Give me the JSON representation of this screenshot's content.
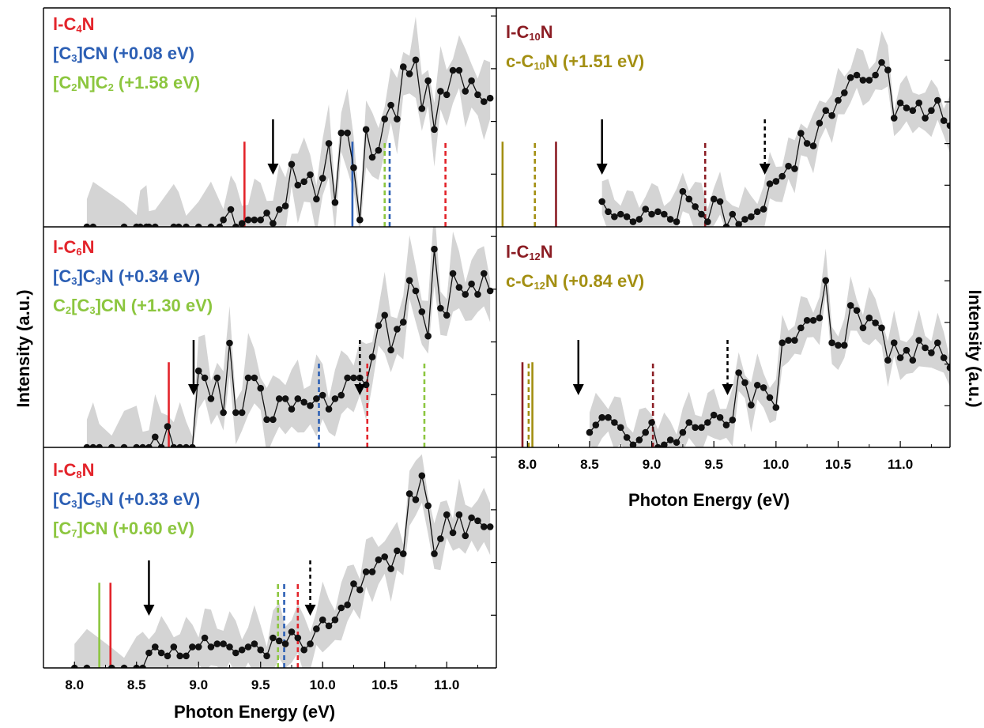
{
  "colors": {
    "red": "#e3242b",
    "blue": "#2c5fb4",
    "green": "#8cc63f",
    "darkred": "#8b1d24",
    "olive": "#a38f12",
    "shade": "#d4d4d4",
    "data": "#111111"
  },
  "axes": {
    "xlabel": "Photon Energy (eV)",
    "ylabel": "Intensity (a.u.)",
    "xticks": [
      "8.0",
      "8.5",
      "9.0",
      "9.5",
      "10.0",
      "10.5",
      "11.0"
    ]
  },
  "chart_data": [
    {
      "type": "line",
      "panel": "l-C4N",
      "xlim": [
        7.75,
        11.4
      ],
      "legend": [
        {
          "text": "l-C4N",
          "html": "l-C<sub>4</sub>N",
          "color": "red"
        },
        {
          "text": "[C3]CN (+0.08 eV)",
          "html": "[C<sub>3</sub>]CN (+0.08 eV)",
          "color": "blue"
        },
        {
          "text": "[C2N]C2 (+1.58 eV)",
          "html": "[C<sub>2</sub>N]C<sub>2</sub> (+1.58 eV)",
          "color": "green"
        }
      ],
      "markers": [
        {
          "x": 9.37,
          "color": "red",
          "style": "solid"
        },
        {
          "x": 10.24,
          "color": "blue",
          "style": "solid"
        },
        {
          "x": 10.5,
          "color": "green",
          "style": "dashed"
        },
        {
          "x": 10.54,
          "color": "blue",
          "style": "dashed"
        },
        {
          "x": 10.99,
          "color": "red",
          "style": "dashed"
        }
      ],
      "arrows": [
        {
          "x": 9.6,
          "style": "solid"
        }
      ],
      "series": [
        {
          "x": [
            8.1,
            8.15,
            8.4,
            8.5,
            8.53,
            8.58,
            8.6,
            8.65,
            8.8,
            8.84,
            8.9,
            9.0,
            9.1,
            9.17,
            9.2,
            9.26,
            9.3,
            9.35,
            9.4,
            9.45,
            9.5,
            9.55,
            9.6,
            9.65,
            9.7,
            9.75,
            9.8,
            9.85,
            9.9,
            9.95,
            10.0,
            10.05,
            10.1,
            10.15,
            10.2,
            10.25,
            10.3,
            10.35,
            10.4,
            10.45,
            10.5,
            10.55,
            10.6,
            10.65,
            10.7,
            10.75,
            10.8,
            10.85,
            10.9,
            10.95,
            11.0,
            11.05,
            11.1,
            11.15,
            11.2,
            11.25,
            11.3,
            11.35
          ],
          "y": [
            0.0,
            0.0,
            0.0,
            0.0,
            0.0,
            0.0,
            0.0,
            0.0,
            0.0,
            0.0,
            0.0,
            0.0,
            0.0,
            0.0,
            0.02,
            0.05,
            0.0,
            0.01,
            0.02,
            0.02,
            0.02,
            0.04,
            0.01,
            0.05,
            0.06,
            0.18,
            0.12,
            0.13,
            0.15,
            0.08,
            0.14,
            0.24,
            0.07,
            0.27,
            0.27,
            0.17,
            0.02,
            0.28,
            0.2,
            0.22,
            0.31,
            0.35,
            0.31,
            0.46,
            0.44,
            0.48,
            0.34,
            0.42,
            0.28,
            0.39,
            0.38,
            0.45,
            0.45,
            0.39,
            0.42,
            0.38,
            0.36,
            0.37
          ],
          "band": 0.07
        }
      ]
    },
    {
      "type": "line",
      "panel": "l-C6N",
      "xlim": [
        7.75,
        11.4
      ],
      "legend": [
        {
          "text": "l-C6N",
          "html": "l-C<sub>6</sub>N",
          "color": "red"
        },
        {
          "text": "[C3]C3N (+0.34 eV)",
          "html": "[C<sub>3</sub>]C<sub>3</sub>N (+0.34 eV)",
          "color": "blue"
        },
        {
          "text": "C2[C3]CN (+1.30 eV)",
          "html": "C<sub>2</sub>[C<sub>3</sub>]CN (+1.30 eV)",
          "color": "green"
        }
      ],
      "markers": [
        {
          "x": 8.76,
          "color": "red",
          "style": "solid"
        },
        {
          "x": 9.97,
          "color": "blue",
          "style": "dashed"
        },
        {
          "x": 10.36,
          "color": "red",
          "style": "dashed"
        },
        {
          "x": 10.82,
          "color": "green",
          "style": "dashed"
        }
      ],
      "arrows": [
        {
          "x": 8.96,
          "style": "solid"
        },
        {
          "x": 10.3,
          "style": "dashed"
        }
      ],
      "series": [
        {
          "x": [
            8.1,
            8.15,
            8.2,
            8.3,
            8.4,
            8.5,
            8.55,
            8.6,
            8.65,
            8.7,
            8.75,
            8.8,
            8.85,
            8.9,
            8.95,
            9.0,
            9.05,
            9.1,
            9.15,
            9.2,
            9.25,
            9.3,
            9.35,
            9.4,
            9.45,
            9.5,
            9.55,
            9.6,
            9.65,
            9.7,
            9.75,
            9.8,
            9.85,
            9.9,
            9.95,
            10.0,
            10.05,
            10.1,
            10.15,
            10.2,
            10.25,
            10.3,
            10.35,
            10.4,
            10.45,
            10.5,
            10.55,
            10.6,
            10.65,
            10.7,
            10.75,
            10.8,
            10.85,
            10.9,
            10.95,
            11.0,
            11.05,
            11.1,
            11.15,
            11.2,
            11.25,
            11.3,
            11.35
          ],
          "y": [
            0.0,
            0.0,
            0.0,
            0.0,
            0.0,
            0.0,
            0.0,
            0.0,
            0.03,
            0.0,
            0.06,
            0.0,
            0.0,
            0.0,
            0.0,
            0.22,
            0.2,
            0.14,
            0.2,
            0.1,
            0.3,
            0.1,
            0.1,
            0.2,
            0.2,
            0.17,
            0.08,
            0.08,
            0.14,
            0.14,
            0.11,
            0.14,
            0.13,
            0.12,
            0.14,
            0.15,
            0.11,
            0.14,
            0.15,
            0.2,
            0.2,
            0.2,
            0.18,
            0.26,
            0.35,
            0.38,
            0.28,
            0.34,
            0.36,
            0.48,
            0.45,
            0.39,
            0.32,
            0.57,
            0.4,
            0.38,
            0.5,
            0.46,
            0.44,
            0.47,
            0.44,
            0.5,
            0.45
          ]
        }
      ]
    },
    {
      "type": "line",
      "panel": "l-C8N",
      "xlim": [
        7.75,
        11.4
      ],
      "legend": [
        {
          "text": "l-C8N",
          "html": "l-C<sub>8</sub>N",
          "color": "red"
        },
        {
          "text": "[C3]C5N (+0.33 eV)",
          "html": "[C<sub>3</sub>]C<sub>5</sub>N (+0.33 eV)",
          "color": "blue"
        },
        {
          "text": "[C7]CN (+0.60 eV)",
          "html": "[C<sub>7</sub>]CN (+0.60 eV)",
          "color": "green"
        }
      ],
      "markers": [
        {
          "x": 8.2,
          "color": "green",
          "style": "solid"
        },
        {
          "x": 8.29,
          "color": "red",
          "style": "solid"
        },
        {
          "x": 9.64,
          "color": "green",
          "style": "dashed"
        },
        {
          "x": 9.69,
          "color": "blue",
          "style": "dashed"
        },
        {
          "x": 9.8,
          "color": "red",
          "style": "dashed"
        }
      ],
      "arrows": [
        {
          "x": 8.6,
          "style": "solid"
        },
        {
          "x": 9.9,
          "style": "dashed"
        }
      ],
      "series": [
        {
          "x": [
            8.0,
            8.1,
            8.3,
            8.4,
            8.5,
            8.55,
            8.6,
            8.65,
            8.7,
            8.75,
            8.8,
            8.85,
            8.9,
            8.95,
            9.0,
            9.05,
            9.1,
            9.15,
            9.2,
            9.25,
            9.3,
            9.35,
            9.4,
            9.45,
            9.5,
            9.55,
            9.6,
            9.65,
            9.7,
            9.75,
            9.8,
            9.85,
            9.9,
            9.95,
            10.0,
            10.05,
            10.1,
            10.15,
            10.2,
            10.25,
            10.3,
            10.35,
            10.4,
            10.45,
            10.5,
            10.55,
            10.6,
            10.65,
            10.7,
            10.75,
            10.8,
            10.85,
            10.9,
            10.95,
            11.0,
            11.05,
            11.1,
            11.15,
            11.2,
            11.25,
            11.3,
            11.35
          ],
          "y": [
            0.0,
            0.0,
            0.0,
            0.0,
            0.0,
            0.0,
            0.05,
            0.07,
            0.05,
            0.04,
            0.07,
            0.04,
            0.04,
            0.07,
            0.07,
            0.1,
            0.07,
            0.08,
            0.08,
            0.07,
            0.05,
            0.06,
            0.07,
            0.08,
            0.06,
            0.04,
            0.1,
            0.09,
            0.08,
            0.12,
            0.1,
            0.06,
            0.08,
            0.13,
            0.16,
            0.14,
            0.16,
            0.2,
            0.21,
            0.28,
            0.26,
            0.32,
            0.32,
            0.36,
            0.37,
            0.33,
            0.39,
            0.38,
            0.58,
            0.56,
            0.64,
            0.54,
            0.38,
            0.43,
            0.51,
            0.45,
            0.51,
            0.44,
            0.5,
            0.49,
            0.47,
            0.47
          ]
        }
      ]
    },
    {
      "type": "line",
      "panel": "l-C10N",
      "xlim": [
        7.75,
        11.4
      ],
      "legend": [
        {
          "text": "l-C10N",
          "html": "l-C<sub>10</sub>N",
          "color": "darkred"
        },
        {
          "text": "c-C10N (+1.51 eV)",
          "html": "c-C<sub>10</sub>N (+1.51 eV)",
          "color": "olive"
        }
      ],
      "markers": [
        {
          "x": 7.8,
          "color": "olive",
          "style": "solid"
        },
        {
          "x": 8.06,
          "color": "olive",
          "style": "dashed"
        },
        {
          "x": 8.23,
          "color": "darkred",
          "style": "solid"
        },
        {
          "x": 9.43,
          "color": "darkred",
          "style": "dashed"
        }
      ],
      "arrows": [
        {
          "x": 8.6,
          "style": "solid"
        },
        {
          "x": 9.91,
          "style": "dashed"
        }
      ],
      "series": [
        {
          "x": [
            8.6,
            8.65,
            8.7,
            8.75,
            8.8,
            8.85,
            8.9,
            8.95,
            9.0,
            9.05,
            9.1,
            9.15,
            9.2,
            9.25,
            9.3,
            9.35,
            9.4,
            9.45,
            9.5,
            9.55,
            9.6,
            9.65,
            9.7,
            9.75,
            9.8,
            9.85,
            9.9,
            9.95,
            10.0,
            10.05,
            10.1,
            10.15,
            10.2,
            10.25,
            10.3,
            10.35,
            10.4,
            10.45,
            10.5,
            10.55,
            10.6,
            10.65,
            10.7,
            10.75,
            10.8,
            10.85,
            10.9,
            10.95,
            11.0,
            11.05,
            11.1,
            11.15,
            11.2,
            11.25,
            11.3,
            11.35,
            11.4
          ],
          "y": [
            0.1,
            0.06,
            0.04,
            0.05,
            0.04,
            0.02,
            0.03,
            0.07,
            0.05,
            0.06,
            0.05,
            0.03,
            0.02,
            0.14,
            0.11,
            0.08,
            0.05,
            0.02,
            0.11,
            0.1,
            0.0,
            0.05,
            0.01,
            0.03,
            0.04,
            0.06,
            0.07,
            0.17,
            0.18,
            0.2,
            0.24,
            0.23,
            0.37,
            0.33,
            0.32,
            0.41,
            0.46,
            0.44,
            0.5,
            0.53,
            0.59,
            0.6,
            0.58,
            0.58,
            0.6,
            0.65,
            0.62,
            0.43,
            0.49,
            0.47,
            0.46,
            0.49,
            0.43,
            0.46,
            0.5,
            0.42,
            0.4
          ]
        }
      ]
    },
    {
      "type": "line",
      "panel": "l-C12N",
      "xlim": [
        7.75,
        11.4
      ],
      "legend": [
        {
          "text": "l-C12N",
          "html": "l-C<sub>12</sub>N",
          "color": "darkred"
        },
        {
          "text": "c-C12N (+0.84 eV)",
          "html": "c-C<sub>12</sub>N (+0.84 eV)",
          "color": "olive"
        }
      ],
      "markers": [
        {
          "x": 7.96,
          "color": "darkred",
          "style": "solid"
        },
        {
          "x": 8.01,
          "color": "olive",
          "style": "dashed"
        },
        {
          "x": 8.04,
          "color": "olive",
          "style": "solid"
        },
        {
          "x": 9.01,
          "color": "darkred",
          "style": "dashed"
        }
      ],
      "arrows": [
        {
          "x": 8.41,
          "style": "solid"
        },
        {
          "x": 9.61,
          "style": "dashed"
        }
      ],
      "series": [
        {
          "x": [
            8.5,
            8.55,
            8.6,
            8.65,
            8.7,
            8.75,
            8.8,
            8.85,
            8.9,
            8.95,
            9.0,
            9.05,
            9.1,
            9.15,
            9.2,
            9.25,
            9.3,
            9.35,
            9.4,
            9.45,
            9.5,
            9.55,
            9.6,
            9.65,
            9.7,
            9.75,
            9.8,
            9.85,
            9.9,
            9.95,
            10.0,
            10.05,
            10.1,
            10.15,
            10.2,
            10.25,
            10.3,
            10.35,
            10.4,
            10.45,
            10.5,
            10.55,
            10.6,
            10.65,
            10.7,
            10.75,
            10.8,
            10.85,
            10.9,
            10.95,
            11.0,
            11.05,
            11.1,
            11.15,
            11.2,
            11.25,
            11.3,
            11.35,
            11.4
          ],
          "y": [
            0.06,
            0.09,
            0.12,
            0.12,
            0.1,
            0.08,
            0.04,
            0.01,
            0.03,
            0.06,
            0.1,
            0.0,
            0.01,
            0.03,
            0.02,
            0.06,
            0.1,
            0.08,
            0.08,
            0.1,
            0.13,
            0.12,
            0.09,
            0.11,
            0.3,
            0.26,
            0.17,
            0.25,
            0.24,
            0.2,
            0.16,
            0.42,
            0.43,
            0.43,
            0.48,
            0.51,
            0.51,
            0.52,
            0.67,
            0.42,
            0.41,
            0.41,
            0.57,
            0.55,
            0.48,
            0.52,
            0.5,
            0.48,
            0.35,
            0.42,
            0.36,
            0.39,
            0.35,
            0.43,
            0.4,
            0.38,
            0.42,
            0.36,
            0.32
          ]
        }
      ]
    }
  ]
}
